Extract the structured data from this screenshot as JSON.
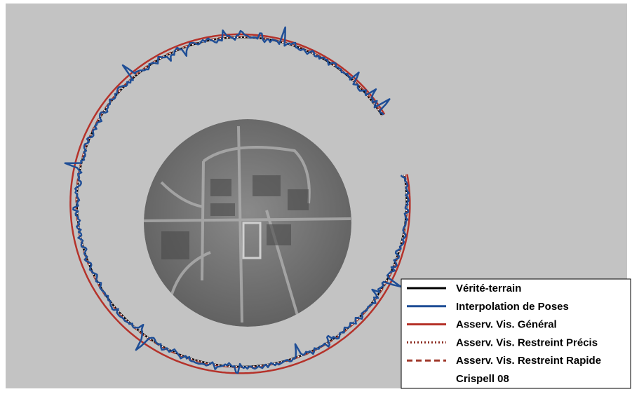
{
  "legend": {
    "items": [
      {
        "label": "Vérité-terrain",
        "color": "#000000",
        "style": "solid"
      },
      {
        "label": "Interpolation de Poses",
        "color": "#1f4e96",
        "style": "solid"
      },
      {
        "label": "Asserv. Vis. Général",
        "color": "#b5322a",
        "style": "solid"
      },
      {
        "label": "Asserv. Vis. Restreint Précis",
        "color": "#8b2a1f",
        "style": "dotted"
      },
      {
        "label": "Asserv. Vis. Restreint Rapide",
        "color": "#a0392b",
        "style": "dashed"
      },
      {
        "label": "Crispell 08",
        "color": "#ffffff",
        "style": "dotted"
      }
    ]
  }
}
